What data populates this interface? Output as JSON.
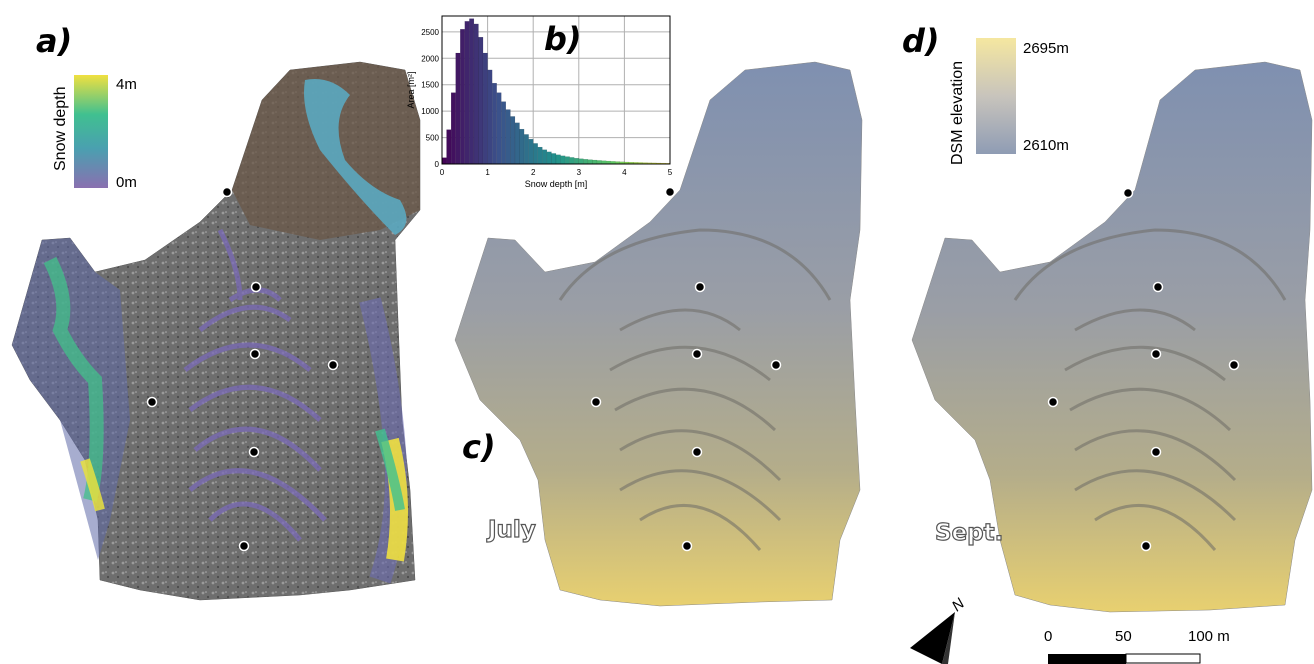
{
  "panels": {
    "a": {
      "letter": "a)"
    },
    "b": {
      "letter": "b)"
    },
    "c": {
      "letter": "c)",
      "season": "July"
    },
    "d": {
      "letter": "d)",
      "season": "Sept."
    }
  },
  "colorbars": {
    "snow_depth": {
      "title": "Snow depth",
      "max_label": "4m",
      "min_label": "0m",
      "colors": [
        "#f0e040",
        "#40c090",
        "#4aa0b0",
        "#8a70b0"
      ]
    },
    "dsm": {
      "title": "DSM elevation",
      "max_label": "2695m",
      "min_label": "2610m",
      "colors": [
        "#f5e7a0",
        "#c8c4bc",
        "#8f9cb4"
      ]
    }
  },
  "scalebar": {
    "labels": [
      "0",
      "50",
      "100 m"
    ]
  },
  "north_label": "N",
  "chart_data": {
    "type": "bar",
    "title": "",
    "xlabel": "Snow depth [m]",
    "ylabel": "Area [m²]",
    "xlim": [
      0,
      5
    ],
    "ylim": [
      0,
      2800
    ],
    "xticks": [
      "0",
      "1",
      "2",
      "3",
      "4",
      "5"
    ],
    "yticks": [
      "0",
      "500",
      "1000",
      "1500",
      "2000",
      "2500"
    ],
    "grid": true,
    "bin_width": 0.1,
    "values": [
      120,
      650,
      1350,
      2100,
      2550,
      2700,
      2750,
      2650,
      2400,
      2100,
      1780,
      1530,
      1350,
      1180,
      1030,
      900,
      780,
      660,
      560,
      470,
      390,
      320,
      270,
      230,
      200,
      175,
      155,
      140,
      125,
      110,
      100,
      90,
      82,
      75,
      68,
      62,
      56,
      51,
      46,
      42,
      38,
      35,
      32,
      29,
      26,
      23,
      21,
      19,
      17,
      15
    ]
  }
}
